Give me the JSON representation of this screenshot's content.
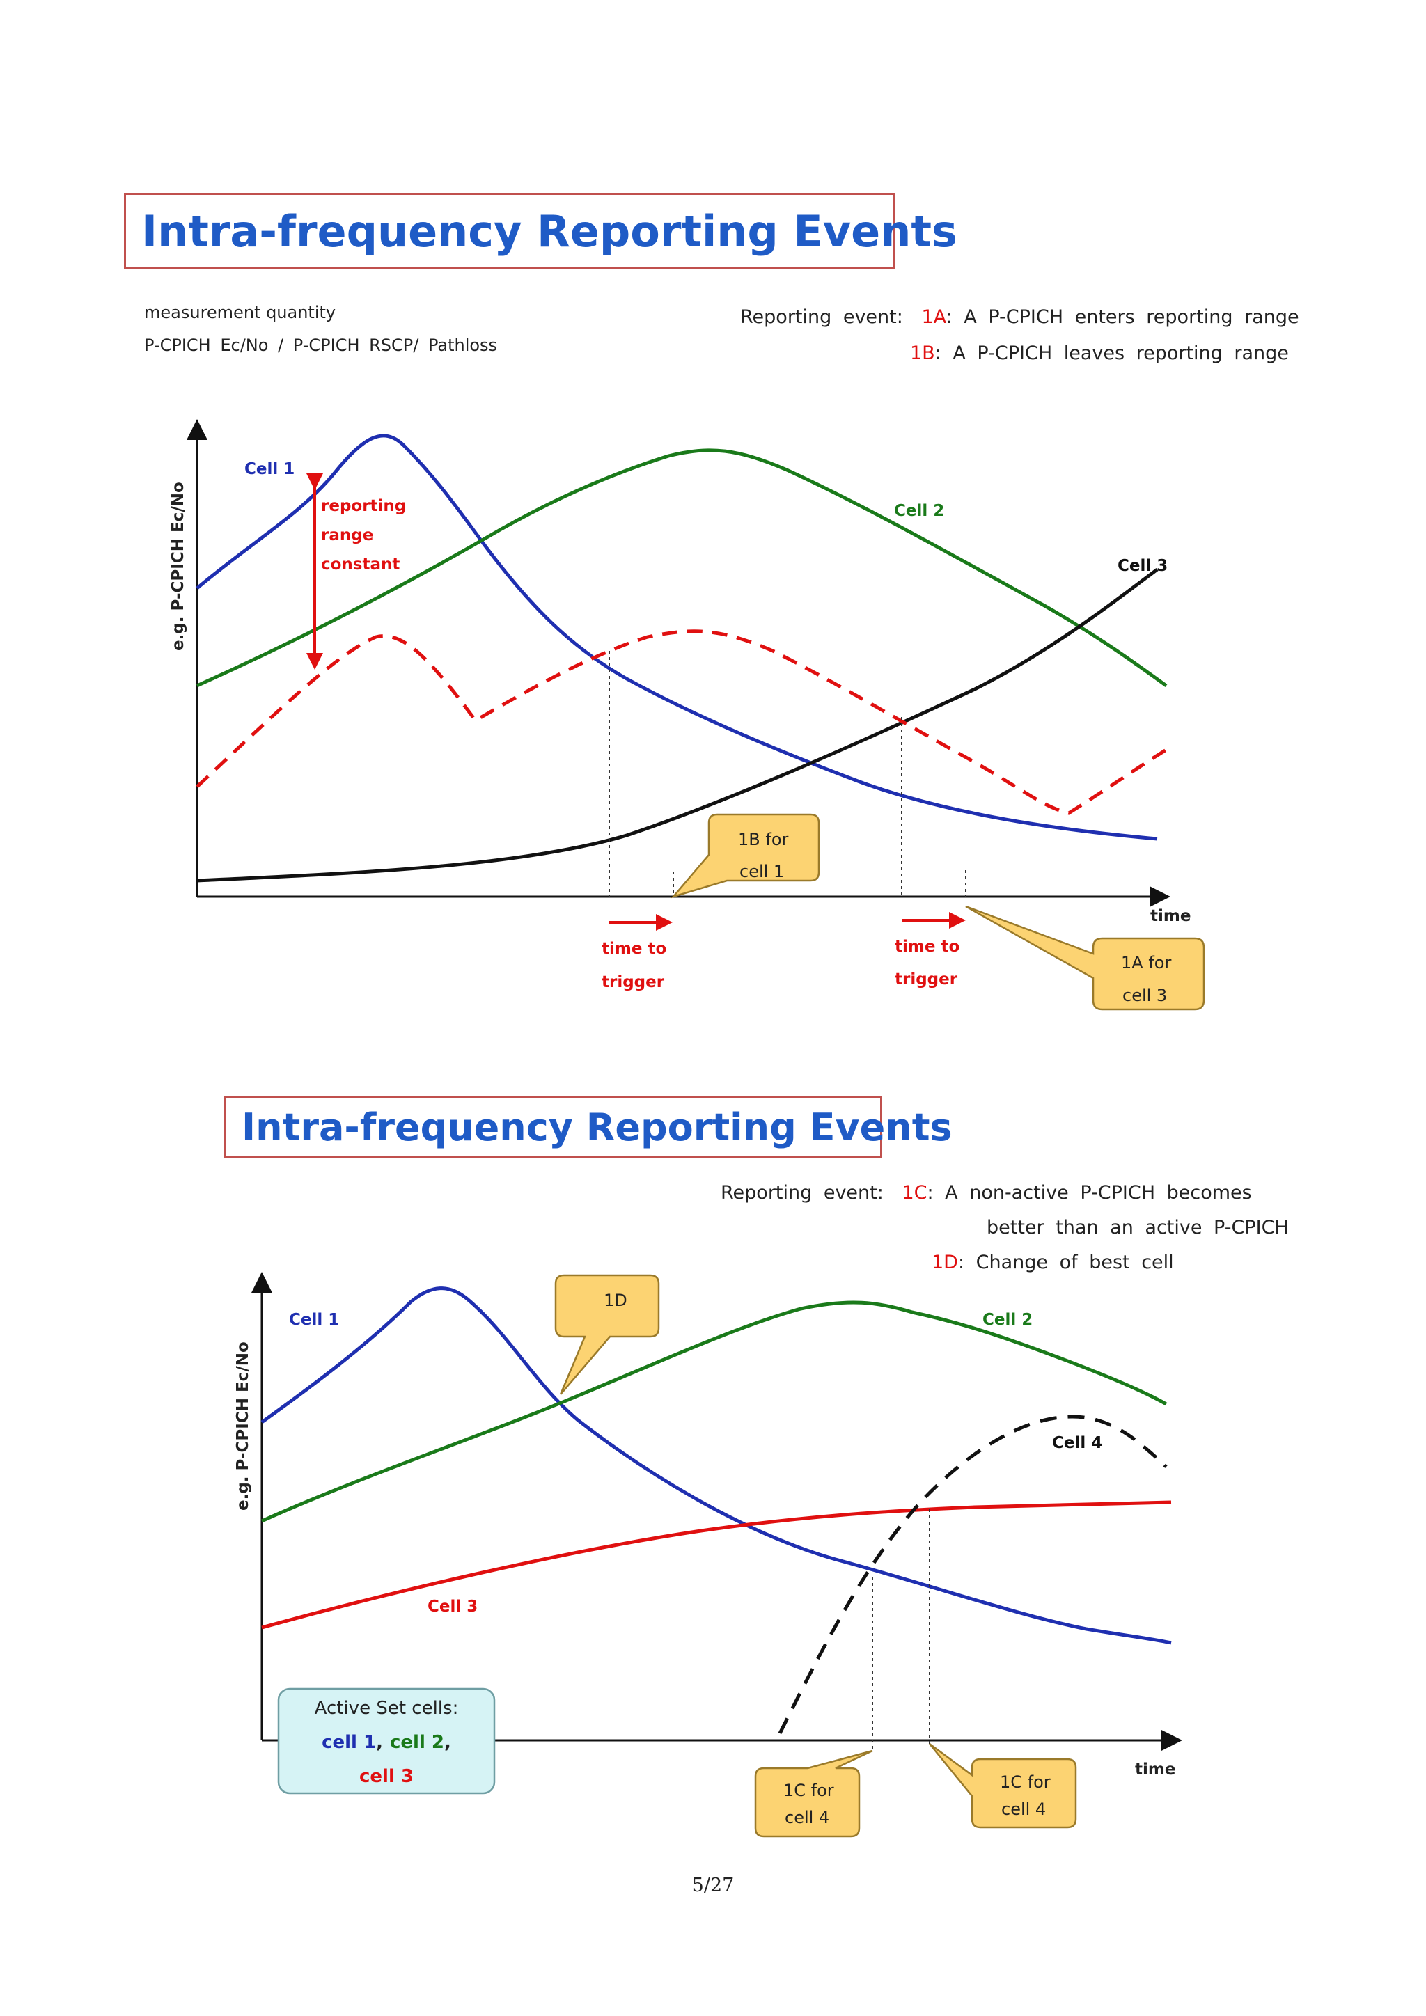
{
  "title1": "Intra-frequency Reporting Events",
  "title2": "Intra-frequency Reporting Events",
  "measurement": {
    "label": "measurement quantity",
    "value": "P-CPICH Ec/No  /  P-CPICH RSCP/  Pathloss"
  },
  "events1": {
    "prefix": "Reporting event:",
    "e1a_code": "1A",
    "e1a_text": ": A P-CPICH enters reporting range",
    "e1b_code": "1B",
    "e1b_text": ": A P-CPICH leaves reporting range"
  },
  "events2": {
    "prefix": "Reporting event:",
    "e1c_code": "1C",
    "e1c_text": ": A non-active P-CPICH becomes",
    "e1c_text2": "better than an active P-CPICH",
    "e1d_code": "1D",
    "e1d_text": ": Change of best cell"
  },
  "diagram1": {
    "ylabel": "e.g. P-CPICH Ec/No",
    "xlabel": "time",
    "cell1": "Cell 1",
    "cell2": "Cell 2",
    "cell3": "Cell 3",
    "range_line1": "reporting",
    "range_line2": "range",
    "range_line3": "constant",
    "ttt_a_line1": "time to",
    "ttt_a_line2": "trigger",
    "ttt_b_line1": "time to",
    "ttt_b_line2": "trigger",
    "callout_1b_line1": "1B for",
    "callout_1b_line2": "cell 1",
    "callout_1a_line1": "1A for",
    "callout_1a_line2": "cell 3"
  },
  "diagram2": {
    "ylabel": "e.g. P-CPICH Ec/No",
    "xlabel": "time",
    "cell1": "Cell 1",
    "cell2": "Cell 2",
    "cell3": "Cell 3",
    "cell4": "Cell 4",
    "callout_1d": "1D",
    "callout_1c3_line1": "1C for",
    "callout_1c3_line2": "cell 4",
    "callout_1c4_line1": "1C for",
    "callout_1c4_line2": "cell 4",
    "active_title": "Active Set cells:",
    "active_c1": "cell 1",
    "active_c2": "cell 2",
    "active_c3": "cell 3",
    "comma": ","
  },
  "page_number": "5/27",
  "colors": {
    "cell1": "#1f2fb0",
    "cell2": "#1a7a1a",
    "cell3": "#111111",
    "red": "#e01010",
    "callout": "#fcd372",
    "callout_border": "#9a7a2a",
    "active_box": "#d6f3f5"
  }
}
